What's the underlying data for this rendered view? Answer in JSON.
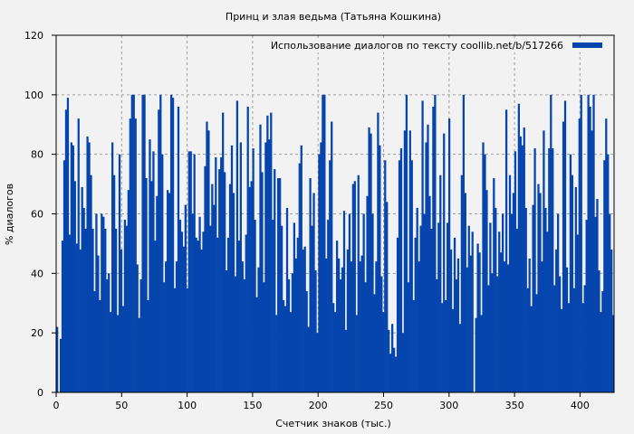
{
  "chart_data": {
    "type": "bar",
    "title": "Принц и злая ведьма (Татьяна Кошкина)",
    "xlabel": "Счетчик знаков (тыс.)",
    "ylabel": "% диалогов",
    "xlim": [
      0,
      426
    ],
    "ylim": [
      0,
      120
    ],
    "xticks": [
      0,
      50,
      100,
      150,
      200,
      250,
      300,
      350,
      400
    ],
    "yticks": [
      0,
      20,
      40,
      60,
      80,
      100,
      120
    ],
    "grid": true,
    "legend": {
      "position": "top-right",
      "entries": [
        "Использование диалогов по тексту  coollib.net/b/517266"
      ]
    },
    "series": [
      {
        "name": "Использование диалогов по тексту  coollib.net/b/517266",
        "color": "#0645ad",
        "bin_width": 2,
        "x_start": 0,
        "values": [
          22,
          0,
          18,
          51,
          78,
          95,
          99,
          53,
          84,
          83,
          71,
          50,
          92,
          48,
          69,
          62,
          55,
          86,
          84,
          73,
          55,
          34,
          60,
          46,
          31,
          60,
          59,
          55,
          38,
          40,
          27,
          84,
          73,
          55,
          26,
          80,
          48,
          29,
          58,
          56,
          68,
          92,
          100,
          100,
          92,
          43,
          25,
          38,
          100,
          100,
          72,
          31,
          85,
          71,
          81,
          51,
          66,
          95,
          100,
          80,
          37,
          44,
          68,
          67,
          100,
          99,
          35,
          44,
          96,
          58,
          54,
          49,
          63,
          35,
          81,
          81,
          60,
          80,
          52,
          51,
          59,
          48,
          54,
          76,
          91,
          88,
          56,
          70,
          63,
          79,
          52,
          75,
          79,
          94,
          74,
          41,
          52,
          70,
          83,
          67,
          39,
          98,
          51,
          84,
          44,
          38,
          53,
          96,
          69,
          71,
          82,
          58,
          32,
          42,
          90,
          74,
          37,
          84,
          93,
          85,
          94,
          58,
          75,
          26,
          72,
          72,
          56,
          31,
          29,
          62,
          38,
          27,
          40,
          57,
          45,
          52,
          77,
          83,
          48,
          49,
          34,
          22,
          72,
          56,
          67,
          41,
          20,
          80,
          84,
          100,
          100,
          45,
          58,
          78,
          91,
          30,
          27,
          51,
          45,
          38,
          42,
          61,
          21,
          48,
          60,
          44,
          70,
          71,
          26,
          73,
          44,
          46,
          60,
          37,
          66,
          89,
          87,
          60,
          33,
          44,
          94,
          83,
          39,
          27,
          78,
          64,
          21,
          13,
          23,
          15,
          12,
          52,
          78,
          82,
          20,
          88,
          100,
          37,
          88,
          78,
          31,
          52,
          62,
          44,
          56,
          98,
          60,
          84,
          90,
          66,
          55,
          96,
          100,
          38,
          57,
          73,
          30,
          87,
          31,
          57,
          92,
          48,
          28,
          52,
          38,
          45,
          23,
          73,
          100,
          67,
          42,
          56,
          46,
          54,
          0,
          25,
          50,
          47,
          26,
          84,
          80,
          68,
          36,
          57,
          40,
          72,
          62,
          39,
          54,
          47,
          60,
          44,
          95,
          43,
          73,
          60,
          67,
          81,
          55,
          97,
          86,
          83,
          89,
          62,
          35,
          45,
          29,
          63,
          82,
          33,
          70,
          67,
          44,
          88,
          62,
          54,
          82,
          100,
          82,
          36,
          48,
          60,
          39,
          28,
          91,
          98,
          42,
          30,
          80,
          73,
          35,
          69,
          53,
          92,
          100,
          30,
          36,
          58,
          100,
          96,
          88,
          100,
          59,
          65,
          41,
          27,
          34,
          78,
          92,
          80,
          60,
          48,
          26
        ],
        "note": "Approximate values read from bar envelope; each bar ≈ 1.43k characters"
      }
    ]
  }
}
